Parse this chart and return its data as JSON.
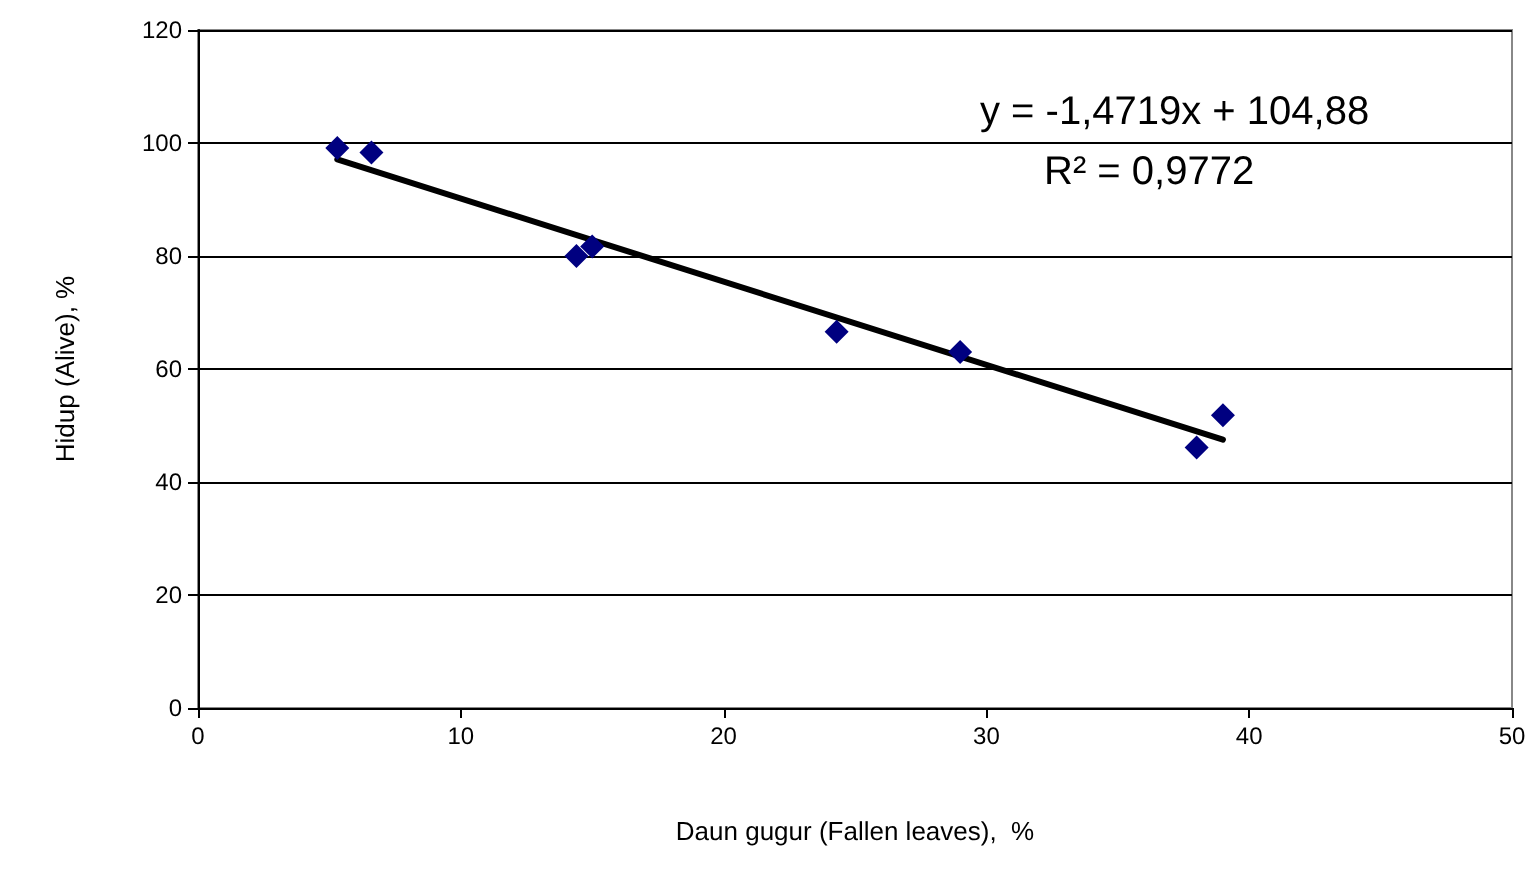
{
  "chart_data": {
    "type": "scatter",
    "xlabel": "Daun gugur (Fallen leaves),  %",
    "ylabel": "Hidup (Alive), %",
    "series": [
      {
        "color": "#000080",
        "marker": "diamond",
        "x": [
          5.3,
          6.6,
          14.4,
          15.0,
          24.3,
          29.0,
          38.0,
          39.0
        ],
        "values": [
          99.1,
          98.3,
          80.0,
          81.7,
          66.6,
          63.0,
          46.1,
          51.8
        ]
      },
      {
        "type": "line",
        "color": "#000000",
        "marker": "none",
        "line_style": "solid",
        "x": [
          5.3,
          39.0
        ],
        "values": [
          97.1,
          47.5
        ]
      }
    ],
    "xlim": [
      0,
      50
    ],
    "xticks": [
      0,
      10,
      20,
      30,
      40,
      50
    ],
    "ylim": [
      0,
      120
    ],
    "yticks": [
      0,
      20,
      40,
      60,
      80,
      100,
      120
    ],
    "grid": "y",
    "annotations": [
      "y = -1,4719x + 104,88",
      "R² = 0,9772"
    ]
  }
}
